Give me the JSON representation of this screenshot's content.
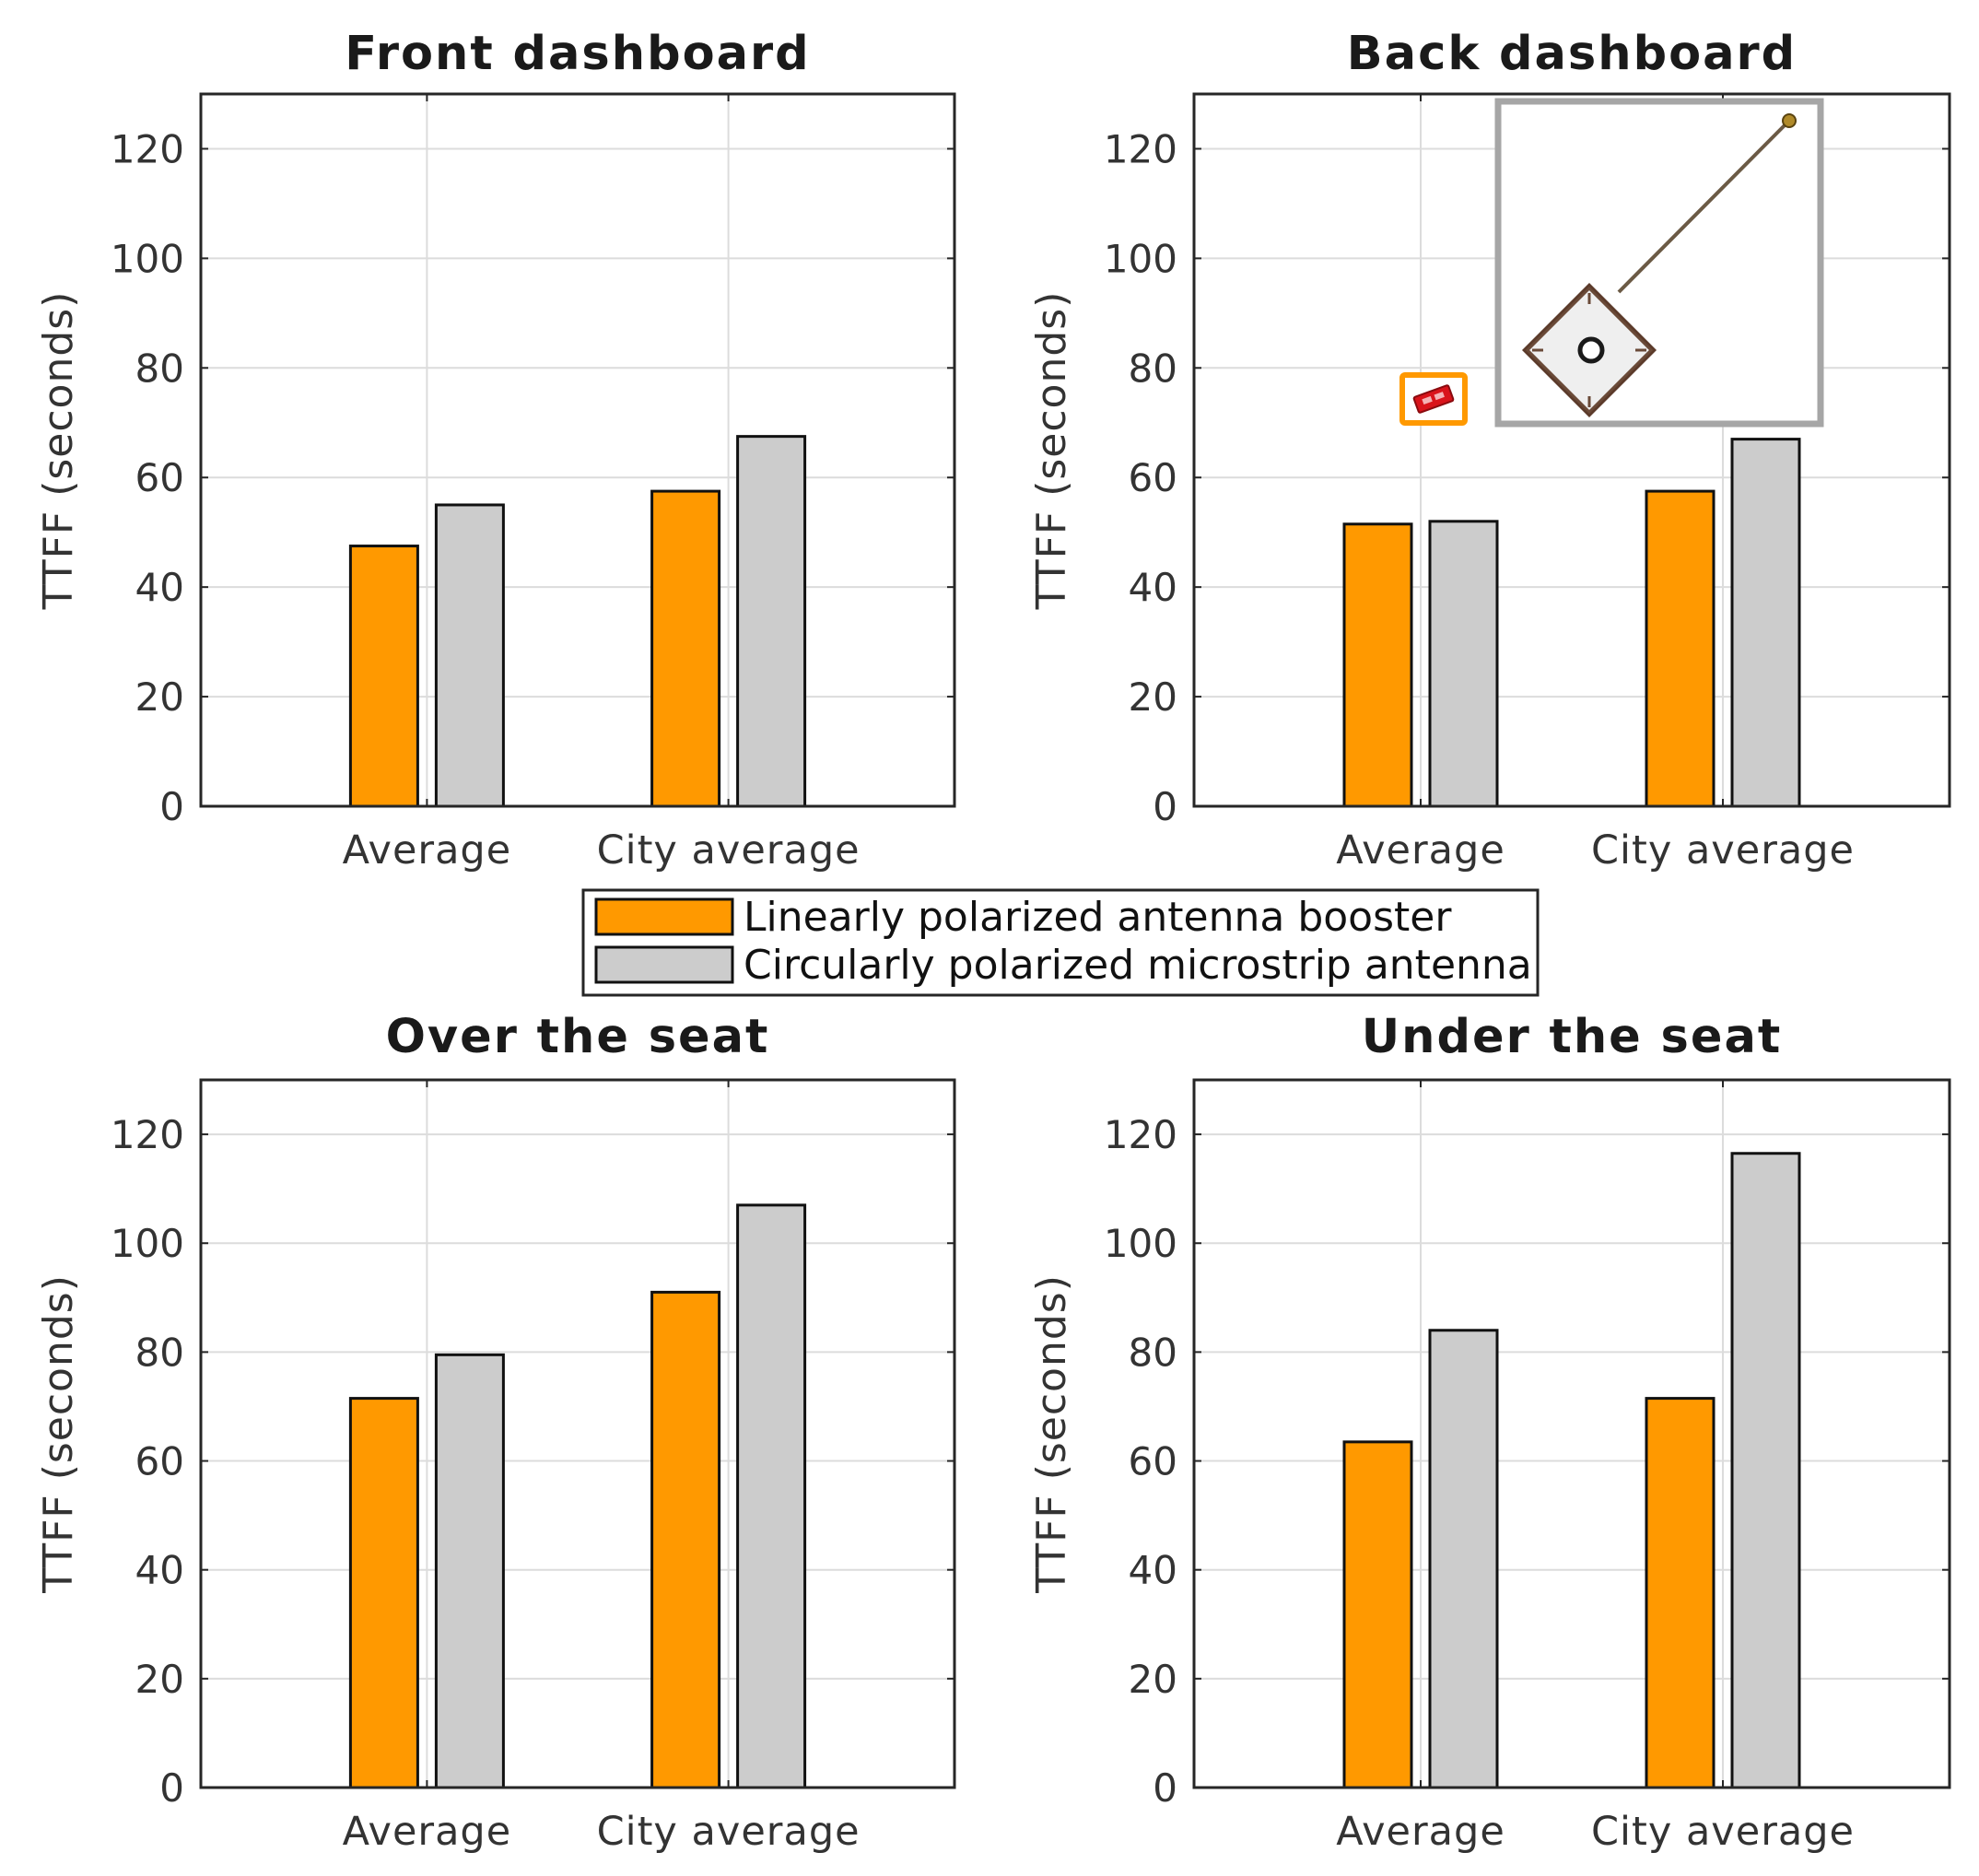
{
  "colors": {
    "series1": "#FF9900",
    "series2": "#CCCCCC",
    "inset_frame": "#A6A6A6",
    "highlight_frame": "#FF9900"
  },
  "legend": {
    "items": [
      {
        "label": "Linearly polarized antenna booster",
        "color": "#FF9900"
      },
      {
        "label": "Circularly polarized microstrip antenna",
        "color": "#CCCCCC"
      }
    ]
  },
  "insets": {
    "booster_icon": "red-chip-antenna-booster-icon",
    "patch_icon": "ceramic-patch-antenna-with-cable-icon"
  },
  "chart_data": [
    {
      "type": "bar",
      "title": "Front dashboard",
      "categories": [
        "Average",
        "City average"
      ],
      "series": [
        {
          "name": "Linearly polarized antenna booster",
          "values": [
            47.5,
            57.5
          ]
        },
        {
          "name": "Circularly polarized microstrip antenna",
          "values": [
            55,
            67.5
          ]
        }
      ],
      "xlabel": "",
      "ylabel": "TTFF (seconds)",
      "ylim": [
        0,
        130
      ],
      "yticks": [
        0,
        20,
        40,
        60,
        80,
        100,
        120
      ],
      "grid": true
    },
    {
      "type": "bar",
      "title": "Back dashboard",
      "categories": [
        "Average",
        "City average"
      ],
      "series": [
        {
          "name": "Linearly polarized antenna booster",
          "values": [
            51.5,
            57.5
          ]
        },
        {
          "name": "Circularly polarized microstrip antenna",
          "values": [
            52,
            67
          ]
        }
      ],
      "xlabel": "",
      "ylabel": "TTFF (seconds)",
      "ylim": [
        0,
        130
      ],
      "yticks": [
        0,
        20,
        40,
        60,
        80,
        100,
        120
      ],
      "grid": true
    },
    {
      "type": "bar",
      "title": "Over the seat",
      "categories": [
        "Average",
        "City average"
      ],
      "series": [
        {
          "name": "Linearly polarized antenna booster",
          "values": [
            71.5,
            91
          ]
        },
        {
          "name": "Circularly polarized microstrip antenna",
          "values": [
            79.5,
            107
          ]
        }
      ],
      "xlabel": "",
      "ylabel": "TTFF (seconds)",
      "ylim": [
        0,
        130
      ],
      "yticks": [
        0,
        20,
        40,
        60,
        80,
        100,
        120
      ],
      "grid": true
    },
    {
      "type": "bar",
      "title": "Under the seat",
      "categories": [
        "Average",
        "City average"
      ],
      "series": [
        {
          "name": "Linearly polarized antenna booster",
          "values": [
            63.5,
            71.5
          ]
        },
        {
          "name": "Circularly polarized microstrip antenna",
          "values": [
            84,
            116.5
          ]
        }
      ],
      "xlabel": "",
      "ylabel": "TTFF (seconds)",
      "ylim": [
        0,
        130
      ],
      "yticks": [
        0,
        20,
        40,
        60,
        80,
        100,
        120
      ],
      "grid": true
    }
  ]
}
